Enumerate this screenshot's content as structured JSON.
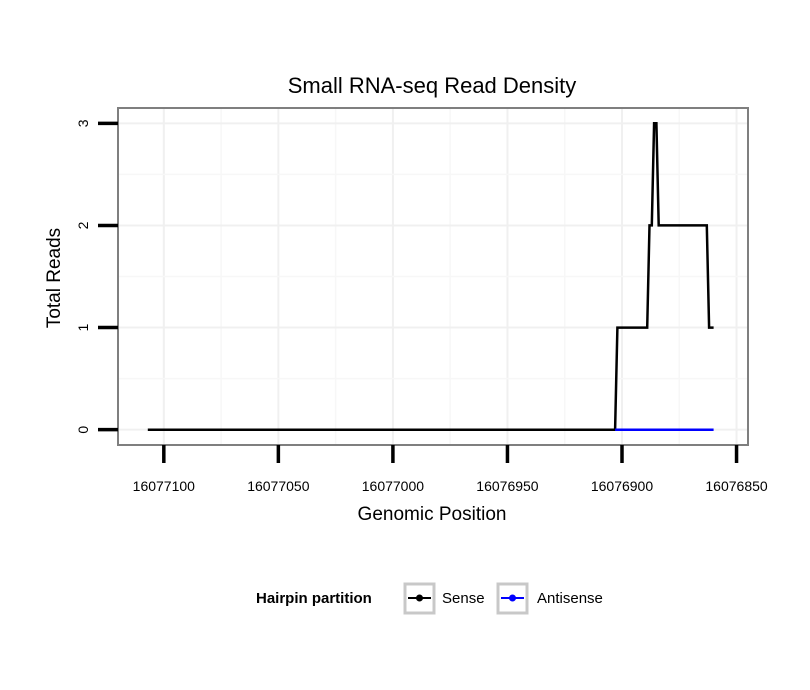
{
  "chart_data": {
    "type": "line",
    "title": "Small RNA-seq Read Density",
    "xlabel": "Genomic Position",
    "ylabel": "Total Reads",
    "x_reversed": true,
    "xlim": [
      16077120,
      16076845
    ],
    "ylim": [
      -0.15,
      3.15
    ],
    "x_ticks": [
      16077100,
      16077050,
      16077000,
      16076950,
      16076900,
      16076850
    ],
    "x_tick_labels": [
      "16077100",
      "16077050",
      "16077000",
      "16076950",
      "16076900",
      "16076850"
    ],
    "y_ticks": [
      0,
      1,
      2,
      3
    ],
    "y_tick_labels": [
      "0",
      "1",
      "2",
      "3"
    ],
    "grid": true,
    "legend": {
      "title": "Hairpin partition",
      "position": "bottom",
      "entries": [
        {
          "name": "Sense",
          "color": "#000000"
        },
        {
          "name": "Antisense",
          "color": "#0000ff"
        }
      ]
    },
    "series": [
      {
        "name": "Sense",
        "color": "#000000",
        "x": [
          16077107,
          16076903,
          16076902,
          16076889,
          16076888,
          16076887,
          16076886,
          16076885,
          16076884,
          16076863,
          16076862,
          16076860
        ],
        "y": [
          0,
          0,
          1,
          1,
          2,
          2,
          3,
          3,
          2,
          2,
          1,
          1
        ]
      },
      {
        "name": "Antisense",
        "color": "#0000ff",
        "x": [
          16076903,
          16076860
        ],
        "y": [
          0,
          0
        ]
      }
    ]
  }
}
